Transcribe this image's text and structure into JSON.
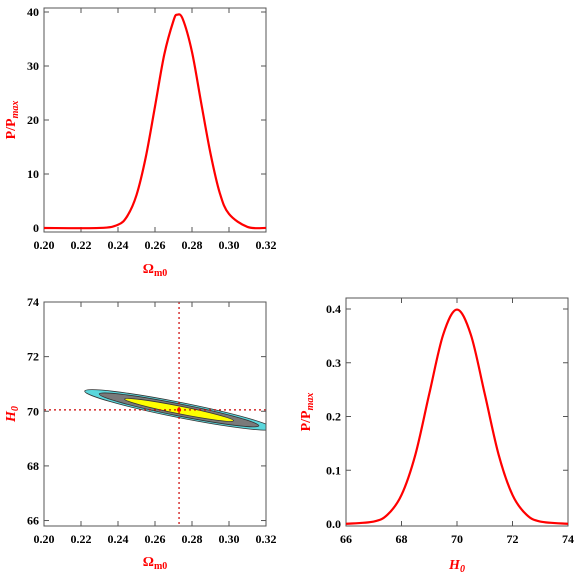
{
  "colors": {
    "curve": "#ff0000",
    "outer_contour": "#5ad7dc",
    "middle_contour": "#7a7a7a",
    "inner_contour": "#ffff00",
    "best_fit_point": "#ff0000",
    "crosshair": "#cc0000"
  },
  "chart_data": [
    {
      "id": "omega-posterior",
      "type": "line",
      "xlabel": "Ω",
      "xlabel_sub": "m0",
      "ylabel": "P/P",
      "ylabel_sub": "max",
      "xlim": [
        0.2,
        0.32
      ],
      "ylim": [
        0,
        40
      ],
      "xticks": [
        "0.20",
        "0.22",
        "0.24",
        "0.26",
        "0.28",
        "0.30",
        "0.32"
      ],
      "yticks": [
        "0",
        "10",
        "20",
        "30",
        "40"
      ],
      "x": [
        0.2,
        0.23,
        0.24,
        0.245,
        0.25,
        0.255,
        0.26,
        0.265,
        0.27,
        0.272,
        0.275,
        0.28,
        0.285,
        0.29,
        0.295,
        0.3,
        0.31,
        0.32
      ],
      "y": [
        0,
        0.01,
        0.6,
        2.2,
        6.1,
        13.1,
        22.5,
        32.1,
        38.4,
        39.5,
        38.7,
        32.6,
        23.1,
        13.8,
        6.5,
        2.6,
        0.2,
        0.01
      ]
    },
    {
      "id": "contour-omega-h0",
      "type": "contour",
      "xlabel": "Ω",
      "xlabel_sub": "m0",
      "ylabel": "H",
      "ylabel_sub": "0",
      "xlim": [
        0.2,
        0.32
      ],
      "ylim": [
        65.8,
        74.0
      ],
      "xticks": [
        "0.20",
        "0.22",
        "0.24",
        "0.26",
        "0.28",
        "0.30",
        "0.32"
      ],
      "yticks": [
        "66",
        "68",
        "70",
        "72",
        "74"
      ],
      "best_fit": {
        "x": 0.273,
        "y": 70.05
      },
      "contours": [
        {
          "level": "3σ",
          "cx": 0.273,
          "cy": 70.05,
          "half_width": 0.052,
          "half_height": 0.28,
          "tilt": -1.35
        },
        {
          "level": "2σ",
          "cx": 0.273,
          "cy": 70.05,
          "half_width": 0.044,
          "half_height": 0.22,
          "tilt": -1.35
        },
        {
          "level": "1σ",
          "cx": 0.273,
          "cy": 70.05,
          "half_width": 0.03,
          "half_height": 0.14,
          "tilt": -1.35
        }
      ]
    },
    {
      "id": "h0-posterior",
      "type": "line",
      "xlabel": "H",
      "xlabel_sub": "0",
      "ylabel": "P/P",
      "ylabel_sub": "max",
      "xlim": [
        66,
        74
      ],
      "ylim": [
        0,
        0.4
      ],
      "xticks": [
        "66",
        "68",
        "70",
        "72",
        "74"
      ],
      "yticks": [
        "0.0",
        "0.1",
        "0.2",
        "0.3",
        "0.4"
      ],
      "x": [
        66.0,
        67.0,
        67.5,
        68.0,
        68.5,
        69.0,
        69.5,
        70.0,
        70.5,
        71.0,
        71.5,
        72.0,
        72.5,
        73.0,
        74.0
      ],
      "y": [
        0.0003,
        0.0045,
        0.0175,
        0.054,
        0.129,
        0.242,
        0.352,
        0.399,
        0.352,
        0.242,
        0.129,
        0.054,
        0.0175,
        0.0045,
        0.0003
      ]
    }
  ]
}
